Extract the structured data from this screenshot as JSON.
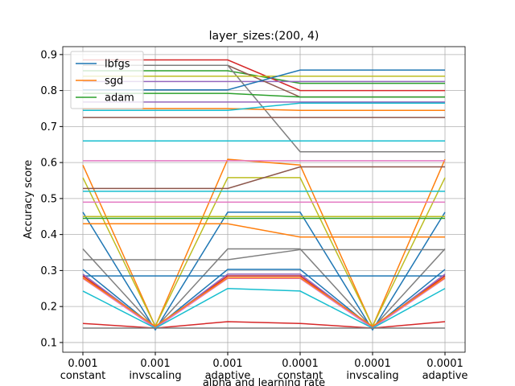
{
  "chart_data": {
    "type": "line",
    "title": "layer_sizes:(200, 4)",
    "x_label": "alpha and learning rate",
    "y_label": "Accuracy score",
    "categories": [
      [
        "0.001",
        "constant"
      ],
      [
        "0.001",
        "invscaling"
      ],
      [
        "0.001",
        "adaptive"
      ],
      [
        "0.0001",
        "constant"
      ],
      [
        "0.0001",
        "invscaling"
      ],
      [
        "0.0001",
        "adaptive"
      ]
    ],
    "ylim": [
      0.073,
      0.922
    ],
    "yticks": [
      0.1,
      0.2,
      0.3,
      0.4,
      0.5,
      0.6,
      0.7,
      0.8,
      0.9
    ],
    "grid": true,
    "legend": "upper left",
    "series": [
      {
        "name": "lbfgs",
        "color": "#1f77b4",
        "values": [
          0.462,
          0.135,
          0.462,
          0.462,
          0.135,
          0.462
        ]
      },
      {
        "name": "sgd",
        "color": "#ff7f0e",
        "values": [
          0.593,
          0.145,
          0.609,
          0.593,
          0.145,
          0.609
        ]
      },
      {
        "name": "adam",
        "color": "#2ca02c",
        "values": [
          0.855,
          0.855,
          0.855,
          0.82,
          0.82,
          0.82
        ]
      },
      {
        "color": "#d62728",
        "values": [
          0.885,
          0.885,
          0.885,
          0.8,
          0.8,
          0.8
        ]
      },
      {
        "color": "#9467bd",
        "values": [
          0.825,
          0.825,
          0.825,
          0.825,
          0.825,
          0.825
        ]
      },
      {
        "color": "#8c564b",
        "values": [
          0.87,
          0.87,
          0.87,
          0.782,
          0.782,
          0.782
        ]
      },
      {
        "color": "#e377c2",
        "values": [
          0.605,
          0.605,
          0.605,
          0.605,
          0.605,
          0.605
        ]
      },
      {
        "color": "#7f7f7f",
        "values": [
          0.87,
          0.87,
          0.87,
          0.63,
          0.63,
          0.63
        ]
      },
      {
        "color": "#bcbd22",
        "values": [
          0.558,
          0.145,
          0.558,
          0.558,
          0.145,
          0.558
        ]
      },
      {
        "color": "#17becf",
        "values": [
          0.66,
          0.66,
          0.66,
          0.66,
          0.66,
          0.66
        ]
      },
      {
        "color": "#1f77b4",
        "values": [
          0.303,
          0.14,
          0.303,
          0.303,
          0.14,
          0.303
        ]
      },
      {
        "color": "#ff7f0e",
        "values": [
          0.75,
          0.75,
          0.75,
          0.745,
          0.745,
          0.745
        ]
      },
      {
        "color": "#2ca02c",
        "values": [
          0.792,
          0.792,
          0.792,
          0.782,
          0.782,
          0.782
        ]
      },
      {
        "color": "#d62728",
        "values": [
          0.153,
          0.14,
          0.158,
          0.153,
          0.14,
          0.158
        ]
      },
      {
        "color": "#9467bd",
        "values": [
          0.768,
          0.768,
          0.768,
          0.768,
          0.768,
          0.768
        ]
      },
      {
        "color": "#8c564b",
        "values": [
          0.528,
          0.528,
          0.528,
          0.588,
          0.588,
          0.588
        ]
      },
      {
        "color": "#e377c2",
        "values": [
          0.49,
          0.49,
          0.49,
          0.49,
          0.49,
          0.49
        ]
      },
      {
        "color": "#7f7f7f",
        "values": [
          0.36,
          0.14,
          0.36,
          0.36,
          0.14,
          0.36
        ]
      },
      {
        "color": "#bcbd22",
        "values": [
          0.84,
          0.84,
          0.84,
          0.84,
          0.84,
          0.84
        ]
      },
      {
        "color": "#17becf",
        "values": [
          0.52,
          0.52,
          0.52,
          0.52,
          0.52,
          0.52
        ]
      },
      {
        "color": "#1f77b4",
        "values": [
          0.285,
          0.285,
          0.285,
          0.285,
          0.285,
          0.285
        ]
      },
      {
        "color": "#ff7f0e",
        "values": [
          0.43,
          0.43,
          0.43,
          0.393,
          0.393,
          0.393
        ]
      },
      {
        "color": "#2ca02c",
        "values": [
          0.445,
          0.445,
          0.445,
          0.445,
          0.445,
          0.445
        ]
      },
      {
        "color": "#d62728",
        "values": [
          0.285,
          0.14,
          0.285,
          0.285,
          0.14,
          0.285
        ]
      },
      {
        "color": "#9467bd",
        "values": [
          0.29,
          0.14,
          0.29,
          0.29,
          0.14,
          0.29
        ]
      },
      {
        "color": "#8c564b",
        "values": [
          0.725,
          0.725,
          0.725,
          0.725,
          0.725,
          0.725
        ]
      },
      {
        "color": "#e377c2",
        "values": [
          0.278,
          0.14,
          0.278,
          0.278,
          0.14,
          0.278
        ]
      },
      {
        "color": "#7f7f7f",
        "values": [
          0.33,
          0.33,
          0.33,
          0.358,
          0.358,
          0.358
        ]
      },
      {
        "color": "#bcbd22",
        "values": [
          0.45,
          0.45,
          0.45,
          0.45,
          0.45,
          0.45
        ]
      },
      {
        "color": "#17becf",
        "values": [
          0.243,
          0.14,
          0.25,
          0.243,
          0.14,
          0.25
        ]
      },
      {
        "color": "#1f77b4",
        "values": [
          0.802,
          0.802,
          0.802,
          0.857,
          0.857,
          0.857
        ]
      },
      {
        "color": "#ff7f0e",
        "values": [
          0.28,
          0.145,
          0.28,
          0.28,
          0.145,
          0.28
        ]
      },
      {
        "color": "#7f7f7f",
        "values": [
          0.14,
          0.14,
          0.14,
          0.14,
          0.14,
          0.14
        ]
      },
      {
        "color": "#17becf",
        "values": [
          0.745,
          0.745,
          0.745,
          0.765,
          0.765,
          0.765
        ]
      }
    ]
  }
}
